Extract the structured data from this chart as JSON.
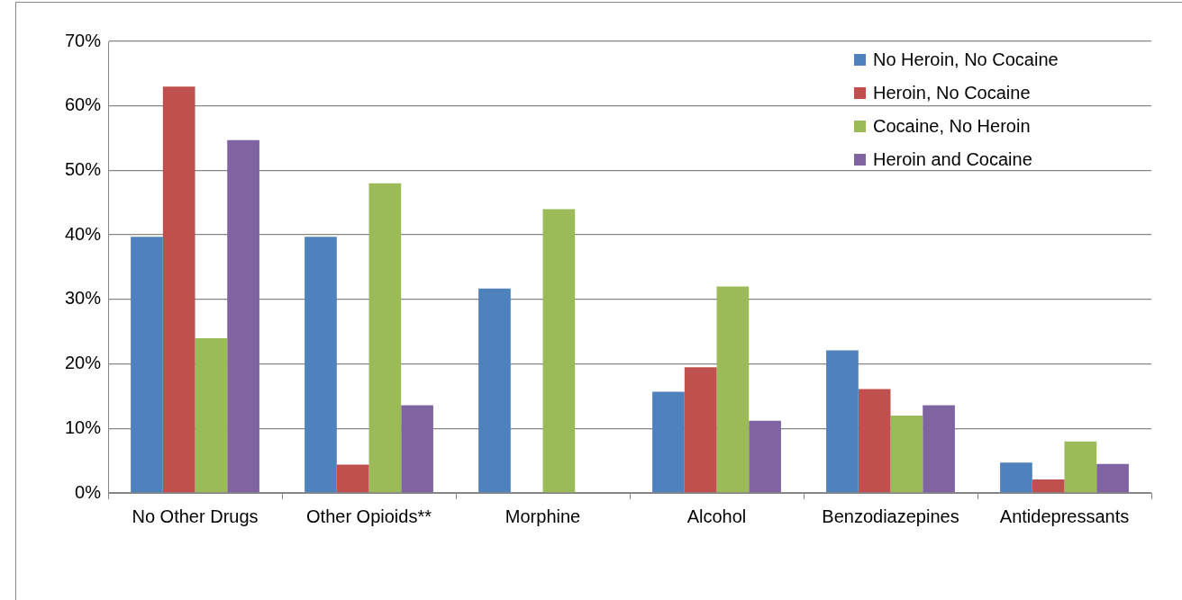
{
  "chart_data": {
    "type": "bar",
    "categories": [
      "No Other Drugs",
      "Other Opioids**",
      "Morphine",
      "Alcohol",
      "Benzodiazepines",
      "Antidepressants"
    ],
    "series": [
      {
        "name": "No Heroin, No Cocaine",
        "color": "#4f81bd",
        "values": [
          39.7,
          39.7,
          31.7,
          15.7,
          22.1,
          4.7
        ]
      },
      {
        "name": "Heroin, No Cocaine",
        "color": "#c0504d",
        "values": [
          63,
          4.4,
          null,
          19.5,
          16.1,
          2.1
        ]
      },
      {
        "name": "Cocaine, No Heroin",
        "color": "#9bbb59",
        "values": [
          24,
          48,
          44,
          32,
          12,
          8
        ]
      },
      {
        "name": "Heroin and Cocaine",
        "color": "#8064a2",
        "values": [
          54.7,
          13.6,
          null,
          11.2,
          13.6,
          4.5
        ]
      }
    ],
    "ylim": [
      0,
      70
    ],
    "yticks": [
      {
        "value": 0,
        "label": "0%"
      },
      {
        "value": 10,
        "label": "10%"
      },
      {
        "value": 20,
        "label": "20%"
      },
      {
        "value": 30,
        "label": "30%"
      },
      {
        "value": 40,
        "label": "40%"
      },
      {
        "value": 50,
        "label": "50%"
      },
      {
        "value": 60,
        "label": "60%"
      },
      {
        "value": 70,
        "label": "70%"
      }
    ],
    "grid": "y",
    "legend": "top right"
  }
}
